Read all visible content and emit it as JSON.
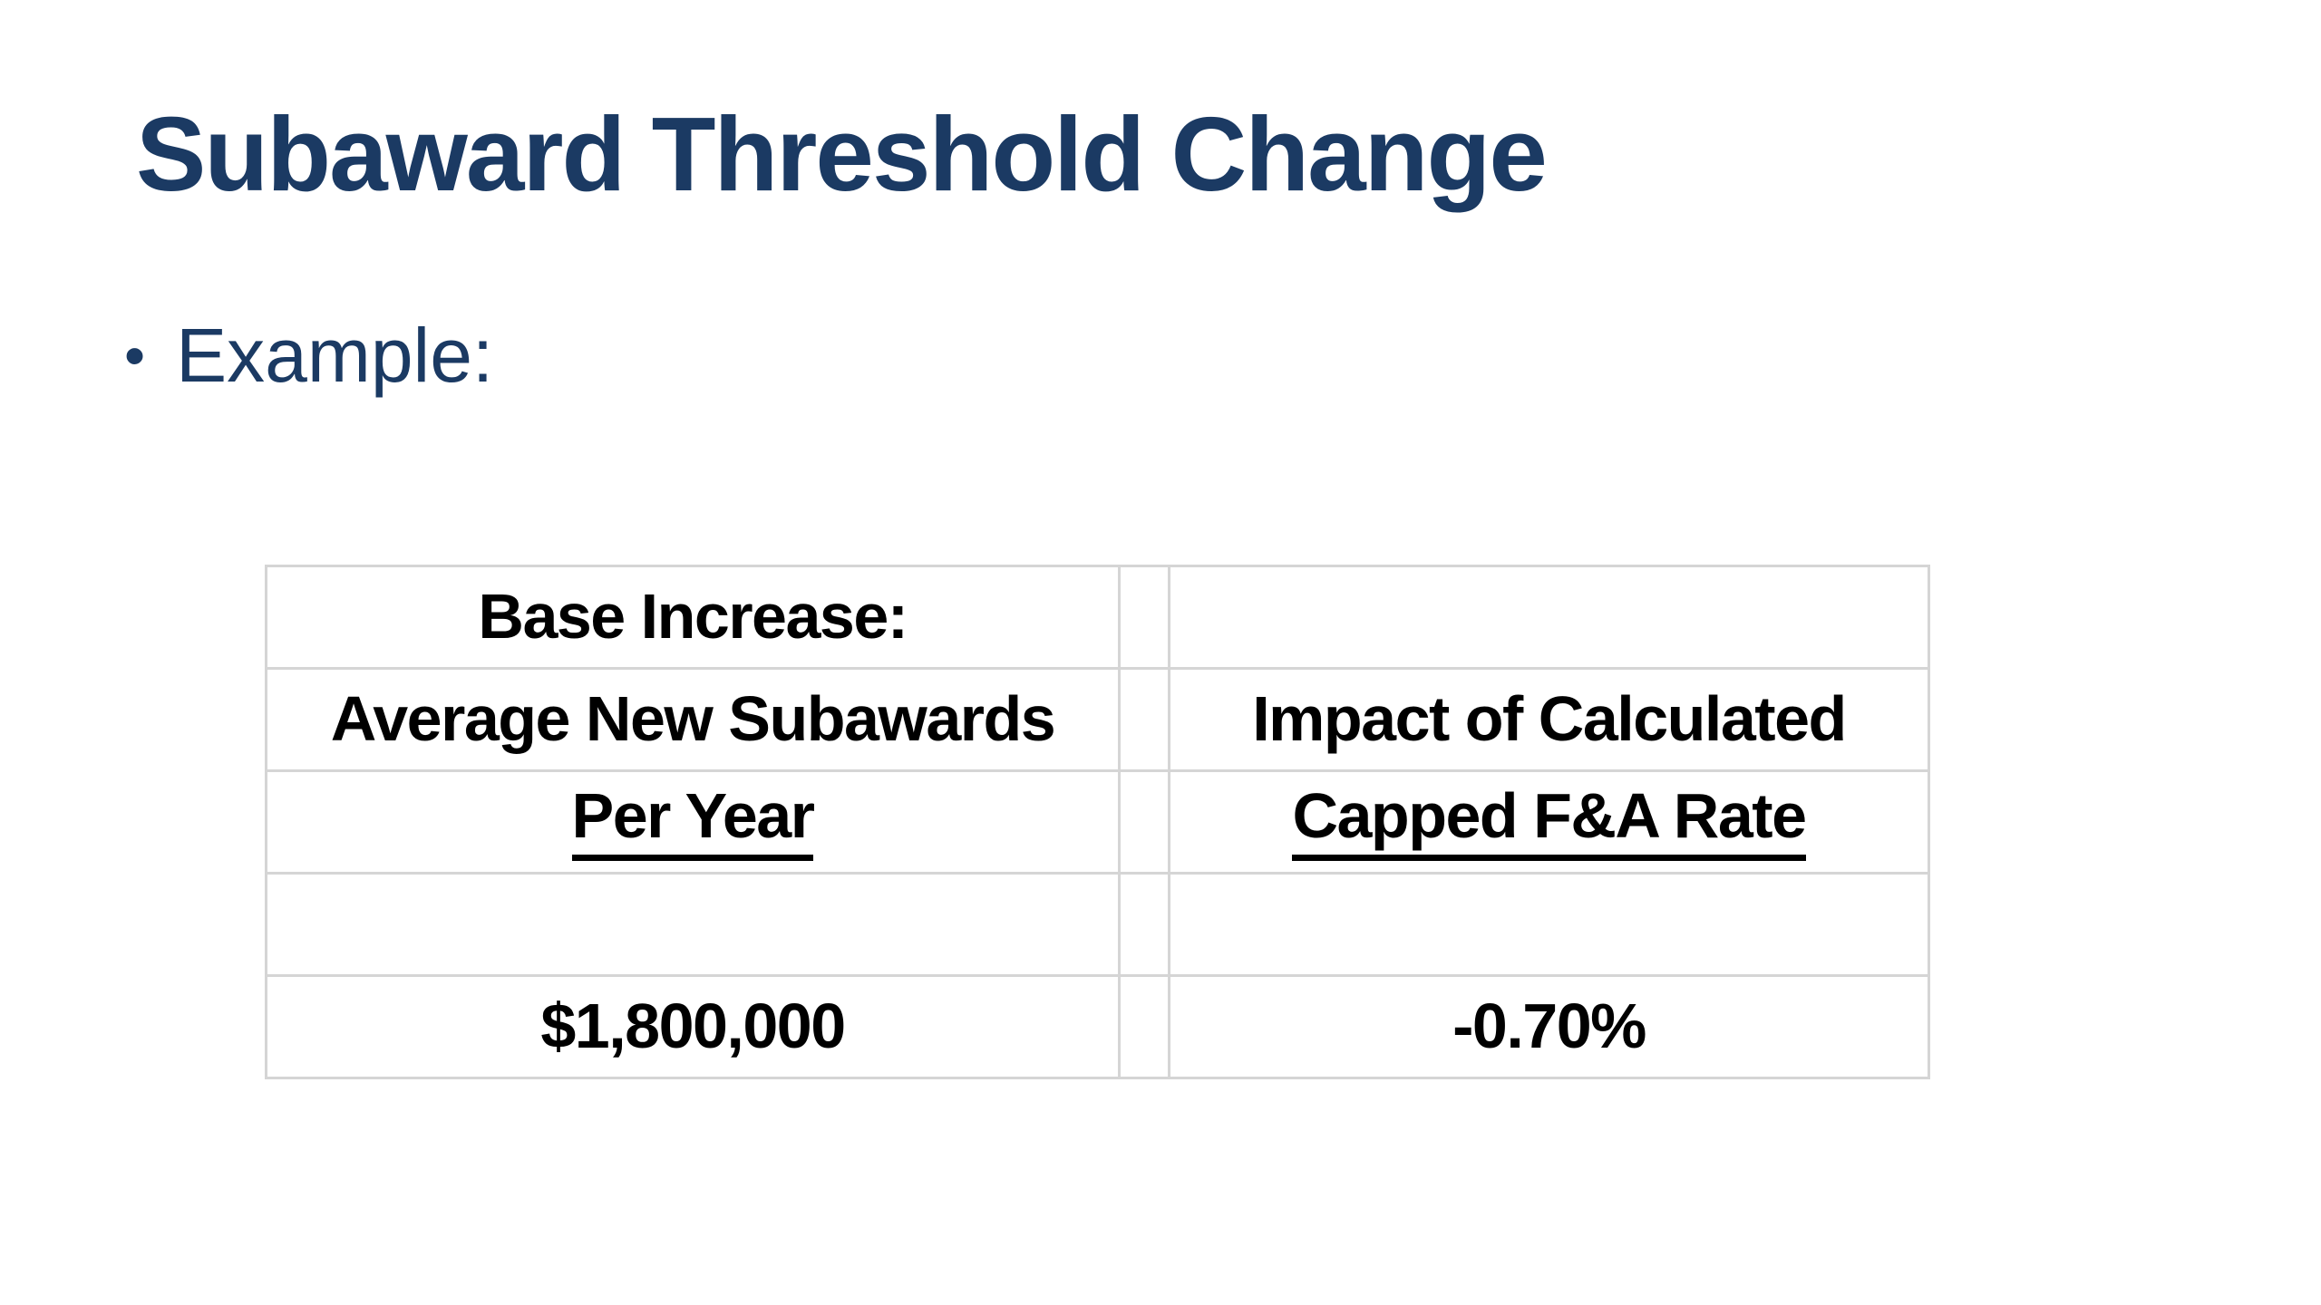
{
  "slide": {
    "title": "Subaward Threshold Change",
    "bullet_marker": "•",
    "bullet_text": "Example:"
  },
  "table": {
    "rows": [
      {
        "left": "Base Increase:",
        "right": ""
      },
      {
        "left": "Average New Subawards",
        "right": "Impact of Calculated"
      },
      {
        "left": "Per Year",
        "right": "Capped F&A Rate"
      },
      {
        "left": "",
        "right": ""
      },
      {
        "left": "$1,800,000",
        "right": "-0.70%"
      }
    ]
  },
  "colors": {
    "background": "#ffffff",
    "title_text": "#1b3a63",
    "bullet_text": "#1b3a63",
    "table_text": "#000000",
    "table_border": "#d5d5d5"
  }
}
